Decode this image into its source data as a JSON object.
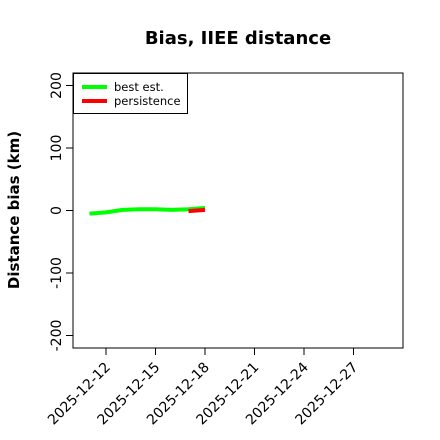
{
  "chart_data": {
    "type": "line",
    "title": "Bias, IIEE distance",
    "xlabel": "",
    "ylabel": "Distance bias (km)",
    "xlim": [
      "2025-12-10",
      "2025-12-30"
    ],
    "ylim": [
      -220,
      220
    ],
    "x_ticks": [
      "2025-12-12",
      "2025-12-15",
      "2025-12-18",
      "2025-12-21",
      "2025-12-24",
      "2025-12-27"
    ],
    "y_ticks": [
      -200,
      -100,
      0,
      100,
      200
    ],
    "y_tick_labels": [
      "-200",
      "-100",
      "0",
      "100",
      "200"
    ],
    "legend_position": "top-left",
    "grid": false,
    "series": [
      {
        "name": "best est.",
        "color": "#00ff00",
        "x": [
          "2025-12-11",
          "2025-12-12",
          "2025-12-13",
          "2025-12-14",
          "2025-12-15",
          "2025-12-16",
          "2025-12-17",
          "2025-12-18"
        ],
        "y": [
          -5,
          -3,
          1,
          2,
          2,
          1,
          2,
          4
        ]
      },
      {
        "name": "persistence",
        "color": "#ff0000",
        "x": [
          "2025-12-17",
          "2025-12-18"
        ],
        "y": [
          -1,
          1
        ]
      }
    ]
  }
}
